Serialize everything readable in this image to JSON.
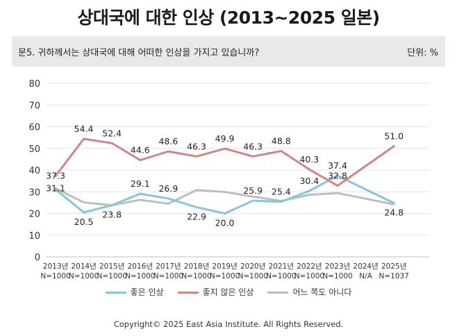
{
  "title": "상대국에 대한 인상 (2013~2025 일본)",
  "question": "문5. 귀하께서는 상대국에 대해 어떠한 인상을 가지고 있습니까?",
  "unit_label": "단위: %",
  "copyright": "Copyright© 2025 East Asia Institute. All Rights Reserved.",
  "chart_data": {
    "type": "line",
    "categories": [
      "2013년",
      "2014년",
      "2015년",
      "2016년",
      "2017년",
      "2018년",
      "2019년",
      "2020년",
      "2021년",
      "2022년",
      "2023년",
      "2024년",
      "2025년"
    ],
    "sample_sizes": [
      "N=1000",
      "N=1000",
      "N=1000",
      "N=1000",
      "N=1000",
      "N=1000",
      "N=1000",
      "N=1000",
      "N=1000",
      "N=1000",
      "N=1000",
      "N/A",
      "N=1037"
    ],
    "ylim": [
      0,
      80
    ],
    "yticks": [
      0,
      10,
      20,
      30,
      40,
      50,
      60,
      70,
      80
    ],
    "grid": true,
    "legend_position": "bottom",
    "series": [
      {
        "name": "좋은 인상",
        "color": "#86c5e0",
        "values": [
          31.1,
          20.5,
          23.8,
          29.1,
          26.9,
          22.9,
          20.0,
          25.9,
          25.4,
          30.4,
          37.4,
          null,
          24.8
        ],
        "labels": [
          "31.1",
          "20.5",
          "23.8",
          "29.1",
          "26.9",
          "22.9",
          "20.0",
          "25.9",
          "25.4",
          "30.4",
          "37.4",
          "",
          "24.8"
        ]
      },
      {
        "name": "좋지 않은 인상",
        "color": "#d58482",
        "values": [
          37.3,
          54.4,
          52.4,
          44.6,
          48.6,
          46.3,
          49.9,
          46.3,
          48.8,
          40.3,
          32.8,
          null,
          51.0
        ],
        "labels": [
          "37.3",
          "54.4",
          "52.4",
          "44.6",
          "48.6",
          "46.3",
          "49.9",
          "46.3",
          "48.8",
          "40.3",
          "32.8",
          "",
          "51.0"
        ]
      },
      {
        "name": "어느 쪽도 아니다",
        "color": "#bdbdbd",
        "values": [
          31.6,
          25.1,
          23.8,
          26.3,
          24.5,
          30.8,
          29.9,
          27.8,
          25.8,
          28.6,
          29.4,
          null,
          24.2
        ],
        "labels": []
      }
    ]
  }
}
